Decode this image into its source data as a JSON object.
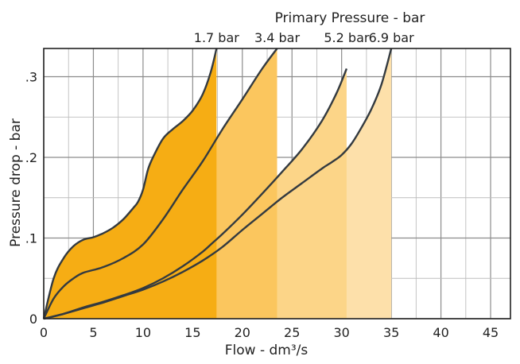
{
  "chart_data": {
    "type": "area",
    "title": "Primary Pressure - bar",
    "xlabel": "Flow - dm³/s",
    "ylabel": "Pressure drop - bar",
    "xlim": [
      0,
      47
    ],
    "ylim": [
      0,
      0.335
    ],
    "x_ticks": [
      0,
      5,
      10,
      15,
      20,
      25,
      30,
      35,
      40,
      45
    ],
    "x_tick_labels": [
      "0",
      "5",
      "10",
      "15",
      "20",
      "25",
      "30",
      "35",
      "40",
      "45"
    ],
    "y_ticks": [
      0,
      0.1,
      0.2,
      0.3
    ],
    "y_tick_labels": [
      "0",
      ".1",
      ".2",
      ".3"
    ],
    "grid": true,
    "series": [
      {
        "name": "1.7 bar",
        "color": "#f6ad14",
        "cutoff_x": 17.4,
        "x": [
          0,
          1,
          2,
          3,
          4,
          5,
          6,
          7,
          8,
          9,
          9.5,
          10,
          10.5,
          11,
          12,
          13,
          14,
          15,
          16,
          16.8,
          17.4
        ],
        "y": [
          0,
          0.05,
          0.075,
          0.09,
          0.098,
          0.101,
          0.106,
          0.113,
          0.123,
          0.137,
          0.145,
          0.16,
          0.185,
          0.2,
          0.223,
          0.235,
          0.245,
          0.258,
          0.278,
          0.305,
          0.335
        ]
      },
      {
        "name": "3.4 bar",
        "color": "#fbc65e",
        "cutoff_x": 23.5,
        "x": [
          0,
          1,
          2,
          3,
          4,
          6,
          8,
          10,
          12,
          14,
          16,
          18,
          20,
          22,
          23.5
        ],
        "y": [
          0,
          0.025,
          0.04,
          0.05,
          0.057,
          0.064,
          0.075,
          0.092,
          0.123,
          0.16,
          0.195,
          0.235,
          0.272,
          0.31,
          0.335
        ]
      },
      {
        "name": "5.2 bar",
        "color": "#fcd588",
        "cutoff_x": 30.5,
        "x": [
          0,
          2,
          4,
          6,
          8,
          10,
          12,
          14,
          16,
          17,
          18,
          20,
          22,
          24,
          26,
          28,
          29.5,
          30.5
        ],
        "y": [
          0,
          0.006,
          0.014,
          0.021,
          0.029,
          0.038,
          0.05,
          0.065,
          0.083,
          0.094,
          0.105,
          0.129,
          0.155,
          0.182,
          0.21,
          0.245,
          0.28,
          0.31
        ]
      },
      {
        "name": "6.9 bar",
        "color": "#fde0aa",
        "cutoff_x": 35,
        "x": [
          0,
          2,
          4,
          6,
          8,
          10,
          12,
          14,
          16,
          18,
          20,
          22,
          24,
          26,
          28,
          29,
          30,
          31,
          32,
          33,
          34,
          35
        ],
        "y": [
          0,
          0.006,
          0.013,
          0.02,
          0.028,
          0.036,
          0.046,
          0.058,
          0.072,
          0.089,
          0.11,
          0.13,
          0.15,
          0.168,
          0.186,
          0.194,
          0.203,
          0.217,
          0.237,
          0.26,
          0.29,
          0.335
        ]
      }
    ]
  }
}
